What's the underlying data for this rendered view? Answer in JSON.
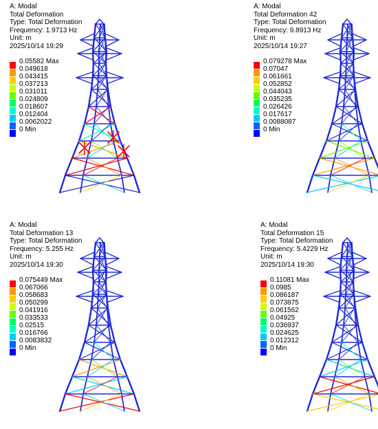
{
  "panels": [
    {
      "analysis": "A: Modal",
      "result": "Total Deformation",
      "type_line": "Type: Total Deformation",
      "frequency": "Frequency: 1.9713 Hz",
      "unit": "Unit: m",
      "timestamp": "2025/10/14 19:29",
      "legend": [
        "0.05582 Max",
        "0.049618",
        "0.043415",
        "0.037213",
        "0.031011",
        "0.024809",
        "0.018607",
        "0.012404",
        "0.0062022",
        "0 Min"
      ],
      "hotspot": "mid-cross-bracing"
    },
    {
      "analysis": "A: Modal",
      "result": "Total Deformation 42",
      "type_line": "Type: Total Deformation",
      "frequency": "Frequency: 9.8913 Hz",
      "unit": "Unit: m",
      "timestamp": "2025/10/14 19:27",
      "legend": [
        "0.079278 Max",
        "0.07047",
        "0.061661",
        "0.052852",
        "0.044043",
        "0.035235",
        "0.026426",
        "0.017617",
        "0.0088087",
        "0 Min"
      ],
      "hotspot": "legs"
    },
    {
      "analysis": "A: Modal",
      "result": "Total Deformation 13",
      "type_line": "Type: Total Deformation",
      "frequency": "Frequency: 5.255 Hz",
      "unit": "Unit: m",
      "timestamp": "2025/10/14 19:30",
      "legend": [
        "0.075449 Max",
        "0.067066",
        "0.058683",
        "0.050299",
        "0.041916",
        "0.033533",
        "0.02515",
        "0.016766",
        "0.0083832",
        "0 Min"
      ],
      "hotspot": "legs"
    },
    {
      "analysis": "A: Modal",
      "result": "Total Deformation 15",
      "type_line": "Type: Total Deformation",
      "frequency": "Frequency: 5.4229 Hz",
      "unit": "Unit: m",
      "timestamp": "2025/10/14 19:30",
      "legend": [
        "0.11081 Max",
        "0.0985",
        "0.086187",
        "0.073875",
        "0.061562",
        "0.04925",
        "0.036937",
        "0.024625",
        "0.012312",
        "0 Min"
      ],
      "hotspot": "legs"
    }
  ],
  "legend_colors": [
    "#ff0000",
    "#ff9900",
    "#ffcc00",
    "#ccff00",
    "#66ff00",
    "#00ff66",
    "#00ffcc",
    "#00ccff",
    "#0066ff",
    "#0000ff"
  ],
  "member_color": "#1f2bd6"
}
